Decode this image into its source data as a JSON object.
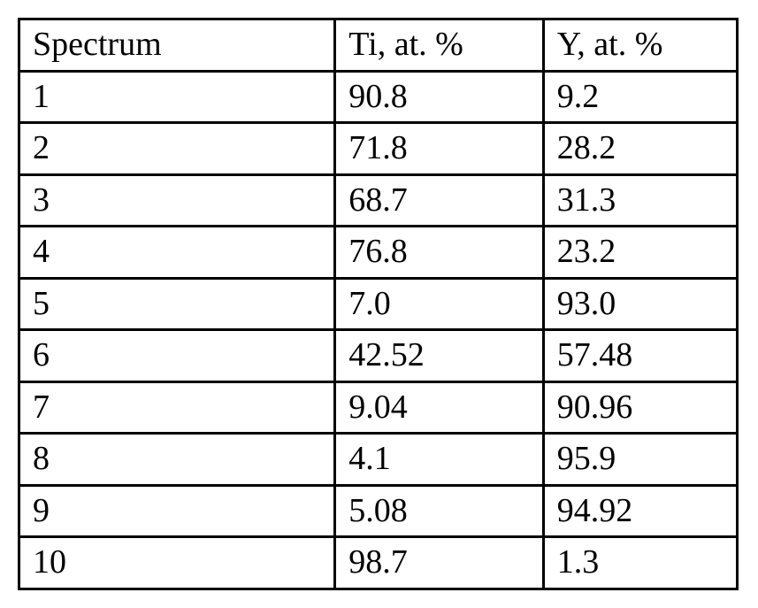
{
  "table": {
    "type": "table",
    "background_color": "#ffffff",
    "border_color": "#000000",
    "border_width": 3,
    "text_color": "#000000",
    "font_family": "Times New Roman",
    "font_size_pt": 28,
    "columns": [
      {
        "label": "Spectrum",
        "width_pct": 44,
        "align": "left"
      },
      {
        "label": "Ti, at. %",
        "width_pct": 29,
        "align": "left"
      },
      {
        "label": "Y, at. %",
        "width_pct": 27,
        "align": "left"
      }
    ],
    "rows": [
      [
        "1",
        "90.8",
        "9.2"
      ],
      [
        "2",
        "71.8",
        "28.2"
      ],
      [
        "3",
        "68.7",
        "31.3"
      ],
      [
        "4",
        "76.8",
        "23.2"
      ],
      [
        "5",
        "7.0",
        "93.0"
      ],
      [
        "6",
        "42.52",
        "57.48"
      ],
      [
        "7",
        "9.04",
        "90.96"
      ],
      [
        "8",
        "4.1",
        "95.9"
      ],
      [
        "9",
        "5.08",
        "94.92"
      ],
      [
        "10",
        "98.7",
        "1.3"
      ]
    ]
  }
}
